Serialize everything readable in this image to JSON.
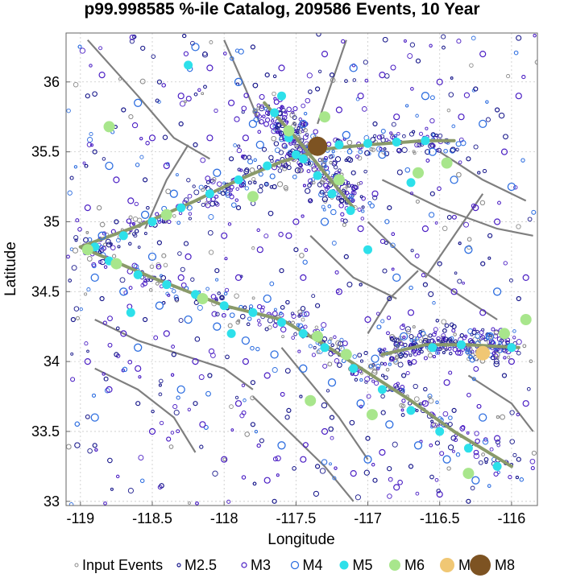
{
  "chart_data": {
    "type": "scatter",
    "title": "p99.998585 %-ile Catalog, 209586 Events, 10 Year",
    "xlabel": "Longitude",
    "ylabel": "Latitude",
    "xlim": [
      -119.1,
      -115.82
    ],
    "ylim": [
      32.97,
      36.35
    ],
    "xticks": [
      -119,
      -118.5,
      -118,
      -117.5,
      -117,
      -116.5,
      -116
    ],
    "yticks": [
      33,
      33.5,
      34,
      34.5,
      35,
      35.5,
      36
    ],
    "grid": true,
    "legend_position": "bottom",
    "legend": [
      {
        "label": "Input Events",
        "style": "tiny-gray-ring"
      },
      {
        "label": "M2.5",
        "style": "small-navy-ring"
      },
      {
        "label": "M3",
        "style": "purple-ring"
      },
      {
        "label": "M4",
        "style": "blue-ring"
      },
      {
        "label": "M5",
        "style": "cyan-dot"
      },
      {
        "label": "M6",
        "style": "light-green-dot"
      },
      {
        "label": "M7",
        "style": "tan-dot"
      },
      {
        "label": "M8",
        "style": "brown-dot"
      }
    ],
    "colors": {
      "input": "#8c8c8c",
      "m25": "#1a1a8c",
      "m3": "#4b1fc4",
      "m4": "#2f6fe0",
      "m5": "#2de0ea",
      "m6": "#a8e68c",
      "m7": "#f0c774",
      "m8": "#7d5322",
      "fault": "#7f7f7f",
      "fault_model": "#8a9a6a"
    },
    "fault_traces": [
      {
        "name": "fault-trace-main-southwest",
        "points": [
          [
            -119,
            34.82
          ],
          [
            -118.5,
            34.6
          ],
          [
            -118,
            34.4
          ],
          [
            -117.6,
            34.3
          ],
          [
            -117.3,
            34.12
          ],
          [
            -117.0,
            33.92
          ],
          [
            -116.7,
            33.72
          ],
          [
            -116.4,
            33.5
          ],
          [
            -116.0,
            33.25
          ]
        ]
      },
      {
        "name": "fault-trace-main-northeast",
        "points": [
          [
            -119,
            34.82
          ],
          [
            -118.6,
            34.97
          ],
          [
            -118.2,
            35.15
          ],
          [
            -117.9,
            35.3
          ],
          [
            -117.6,
            35.43
          ],
          [
            -117.3,
            35.52
          ],
          [
            -117.0,
            35.55
          ],
          [
            -116.6,
            35.58
          ],
          [
            -116.4,
            35.58
          ]
        ]
      },
      {
        "name": "fault-trace-cross",
        "points": [
          [
            -117.72,
            35.85
          ],
          [
            -117.5,
            35.6
          ],
          [
            -117.3,
            35.35
          ],
          [
            -117.1,
            35.1
          ]
        ]
      },
      {
        "name": "fault-trace-southeast",
        "points": [
          [
            -116.9,
            34.05
          ],
          [
            -116.6,
            34.12
          ],
          [
            -116.3,
            34.12
          ],
          [
            -115.95,
            34.1
          ]
        ]
      }
    ],
    "events": {
      "M8": [
        [
          -117.35,
          35.54
        ]
      ],
      "M7": [
        [
          -116.2,
          34.06
        ]
      ],
      "M6": [
        [
          -118.95,
          34.8
        ],
        [
          -117.55,
          35.65
        ],
        [
          -117.3,
          35.75
        ],
        [
          -117.2,
          35.3
        ],
        [
          -116.65,
          35.35
        ],
        [
          -116.45,
          35.42
        ],
        [
          -117.35,
          34.18
        ],
        [
          -117.15,
          34.05
        ],
        [
          -116.97,
          33.62
        ],
        [
          -117.4,
          33.72
        ],
        [
          -116.3,
          33.2
        ],
        [
          -116.05,
          34.2
        ],
        [
          -115.9,
          34.3
        ],
        [
          -118.75,
          34.7
        ],
        [
          -118.15,
          34.45
        ],
        [
          -117.8,
          35.18
        ],
        [
          -118.4,
          35.05
        ],
        [
          -118.8,
          35.68
        ]
      ],
      "M5": [
        [
          -118.9,
          34.82
        ],
        [
          -118.7,
          34.9
        ],
        [
          -118.5,
          35.0
        ],
        [
          -118.3,
          35.1
        ],
        [
          -118.1,
          35.2
        ],
        [
          -117.9,
          35.3
        ],
        [
          -117.7,
          35.4
        ],
        [
          -117.5,
          35.48
        ],
        [
          -117.2,
          35.55
        ],
        [
          -117.0,
          35.56
        ],
        [
          -116.8,
          35.57
        ],
        [
          -116.6,
          35.58
        ],
        [
          -117.65,
          35.78
        ],
        [
          -117.55,
          35.6
        ],
        [
          -117.45,
          35.45
        ],
        [
          -117.35,
          35.33
        ],
        [
          -117.25,
          35.2
        ],
        [
          -117.12,
          35.08
        ],
        [
          -118.8,
          34.72
        ],
        [
          -118.6,
          34.62
        ],
        [
          -118.4,
          34.55
        ],
        [
          -118.2,
          34.48
        ],
        [
          -118.0,
          34.4
        ],
        [
          -117.8,
          34.35
        ],
        [
          -117.6,
          34.28
        ],
        [
          -117.45,
          34.2
        ],
        [
          -117.3,
          34.1
        ],
        [
          -117.1,
          33.95
        ],
        [
          -116.9,
          33.8
        ],
        [
          -116.7,
          33.65
        ],
        [
          -116.5,
          33.5
        ],
        [
          -116.3,
          33.38
        ],
        [
          -116.1,
          33.25
        ],
        [
          -116.55,
          34.1
        ],
        [
          -116.35,
          34.12
        ],
        [
          -116.0,
          34.1
        ],
        [
          -117.6,
          35.9
        ],
        [
          -116.7,
          35.28
        ],
        [
          -118.65,
          34.35
        ],
        [
          -117.95,
          34.2
        ],
        [
          -118.25,
          36.12
        ],
        [
          -117.0,
          34.8
        ]
      ],
      "M4": [
        [
          -118.85,
          34.9
        ],
        [
          -118.55,
          35.05
        ],
        [
          -118.35,
          35.2
        ],
        [
          -118.05,
          35.35
        ],
        [
          -117.75,
          35.55
        ],
        [
          -117.8,
          35.7
        ],
        [
          -117.45,
          35.7
        ],
        [
          -117.15,
          35.62
        ],
        [
          -116.9,
          35.48
        ],
        [
          -116.55,
          35.5
        ],
        [
          -116.4,
          35.3
        ],
        [
          -118.9,
          34.6
        ],
        [
          -118.7,
          34.5
        ],
        [
          -118.45,
          34.4
        ],
        [
          -118.25,
          34.3
        ],
        [
          -118.05,
          34.25
        ],
        [
          -117.85,
          34.15
        ],
        [
          -117.65,
          34.05
        ],
        [
          -117.45,
          33.95
        ],
        [
          -117.25,
          33.85
        ],
        [
          -117.05,
          33.7
        ],
        [
          -116.85,
          33.55
        ],
        [
          -116.65,
          33.4
        ],
        [
          -116.45,
          33.3
        ],
        [
          -116.25,
          33.15
        ],
        [
          -116.95,
          34.02
        ],
        [
          -116.75,
          34.18
        ],
        [
          -116.15,
          34.18
        ],
        [
          -117.7,
          34.45
        ],
        [
          -118.5,
          34.75
        ],
        [
          -117.3,
          35.0
        ],
        [
          -116.8,
          34.6
        ],
        [
          -116.3,
          34.8
        ],
        [
          -118.8,
          35.4
        ],
        [
          -118.6,
          35.85
        ],
        [
          -117.9,
          36.0
        ],
        [
          -117.1,
          36.1
        ],
        [
          -116.6,
          35.9
        ],
        [
          -116.2,
          35.7
        ],
        [
          -116.0,
          35.25
        ],
        [
          -116.1,
          34.5
        ],
        [
          -118.3,
          33.8
        ],
        [
          -117.6,
          33.4
        ],
        [
          -118.9,
          33.6
        ],
        [
          -118.6,
          34.1
        ],
        [
          -117.0,
          33.3
        ],
        [
          -116.2,
          33.6
        ],
        [
          -118.2,
          36.25
        ]
      ],
      "M3": [
        [
          -118.95,
          35.1
        ],
        [
          -118.75,
          35.3
        ],
        [
          -118.5,
          35.6
        ],
        [
          -118.3,
          35.9
        ],
        [
          -118.1,
          36.1
        ],
        [
          -117.95,
          35.85
        ],
        [
          -117.85,
          35.6
        ],
        [
          -117.6,
          36.1
        ],
        [
          -117.3,
          36.2
        ],
        [
          -117.05,
          35.9
        ],
        [
          -116.8,
          35.75
        ],
        [
          -116.5,
          36.0
        ],
        [
          -116.2,
          36.2
        ],
        [
          -115.95,
          35.9
        ],
        [
          -116.05,
          35.5
        ],
        [
          -116.25,
          35.1
        ],
        [
          -116.6,
          34.95
        ],
        [
          -116.95,
          35.2
        ],
        [
          -117.5,
          35.0
        ],
        [
          -117.75,
          34.8
        ],
        [
          -118.0,
          34.9
        ],
        [
          -118.25,
          34.75
        ],
        [
          -118.7,
          34.2
        ],
        [
          -118.95,
          34.0
        ],
        [
          -118.8,
          33.8
        ],
        [
          -118.5,
          33.5
        ],
        [
          -118.2,
          34.0
        ],
        [
          -117.9,
          33.7
        ],
        [
          -117.7,
          33.9
        ],
        [
          -117.3,
          33.5
        ],
        [
          -117.1,
          33.2
        ],
        [
          -116.8,
          33.1
        ],
        [
          -116.5,
          33.05
        ],
        [
          -116.1,
          33.45
        ],
        [
          -115.9,
          33.7
        ],
        [
          -116.0,
          34.0
        ],
        [
          -115.9,
          34.6
        ],
        [
          -116.4,
          34.5
        ],
        [
          -116.7,
          34.35
        ],
        [
          -117.2,
          34.5
        ],
        [
          -117.45,
          34.6
        ],
        [
          -117.9,
          34.6
        ],
        [
          -118.4,
          34.2
        ],
        [
          -118.6,
          33.95
        ],
        [
          -117.0,
          34.3
        ],
        [
          -116.2,
          34.35
        ],
        [
          -118.4,
          35.4
        ],
        [
          -118.1,
          35.6
        ],
        [
          -117.2,
          35.8
        ],
        [
          -116.9,
          36.05
        ],
        [
          -116.35,
          35.75
        ],
        [
          -117.55,
          34.9
        ],
        [
          -118.0,
          33.3
        ],
        [
          -117.7,
          33.15
        ],
        [
          -118.65,
          35.15
        ],
        [
          -116.45,
          33.85
        ],
        [
          -116.6,
          33.7
        ],
        [
          -117.85,
          34.0
        ],
        [
          -118.3,
          34.6
        ],
        [
          -117.05,
          34.95
        ],
        [
          -116.1,
          35.0
        ],
        [
          -118.85,
          36.05
        ],
        [
          -117.45,
          33.3
        ],
        [
          -116.9,
          33.35
        ],
        [
          -118.15,
          33.55
        ]
      ],
      "M2.5": [
        [
          -119.05,
          34.3
        ],
        [
          -118.9,
          35.5
        ],
        [
          -118.55,
          35.3
        ],
        [
          -118.2,
          35.55
        ],
        [
          -117.9,
          35.1
        ],
        [
          -117.65,
          35.25
        ],
        [
          -117.4,
          35.15
        ],
        [
          -117.1,
          35.35
        ],
        [
          -116.85,
          35.1
        ],
        [
          -116.55,
          35.2
        ],
        [
          -116.3,
          35.45
        ],
        [
          -116.1,
          35.8
        ],
        [
          -116.65,
          36.15
        ],
        [
          -117.35,
          35.95
        ],
        [
          -117.8,
          36.25
        ],
        [
          -118.45,
          36.0
        ],
        [
          -118.7,
          35.8
        ],
        [
          -118.85,
          34.45
        ],
        [
          -118.55,
          34.3
        ],
        [
          -118.35,
          34.05
        ],
        [
          -118.1,
          33.9
        ],
        [
          -117.8,
          33.55
        ],
        [
          -117.55,
          33.65
        ],
        [
          -117.35,
          33.25
        ],
        [
          -116.95,
          33.15
        ],
        [
          -116.7,
          33.25
        ],
        [
          -116.3,
          33.0
        ],
        [
          -115.95,
          33.3
        ],
        [
          -116.05,
          33.9
        ],
        [
          -115.95,
          34.45
        ],
        [
          -116.2,
          34.7
        ],
        [
          -116.5,
          34.7
        ],
        [
          -116.85,
          34.45
        ],
        [
          -117.15,
          34.75
        ],
        [
          -117.35,
          34.4
        ],
        [
          -117.6,
          34.65
        ],
        [
          -118.05,
          34.65
        ],
        [
          -118.45,
          34.85
        ],
        [
          -118.75,
          35.0
        ],
        [
          -116.4,
          34.25
        ],
        [
          -117.8,
          33.85
        ],
        [
          -118.2,
          33.7
        ],
        [
          -118.6,
          33.7
        ],
        [
          -118.9,
          33.4
        ],
        [
          -117.25,
          33.6
        ],
        [
          -116.75,
          33.9
        ],
        [
          -116.6,
          34.55
        ],
        [
          -117.95,
          35.45
        ],
        [
          -118.3,
          35.7
        ],
        [
          -117.7,
          36.05
        ],
        [
          -116.95,
          35.7
        ],
        [
          -116.25,
          35.95
        ],
        [
          -117.0,
          33.45
        ],
        [
          -116.4,
          33.65
        ],
        [
          -118.75,
          34.05
        ],
        [
          -117.5,
          34.8
        ],
        [
          -116.15,
          34.9
        ],
        [
          -118.95,
          35.9
        ],
        [
          -117.25,
          36.05
        ],
        [
          -117.65,
          33.0
        ]
      ]
    }
  }
}
